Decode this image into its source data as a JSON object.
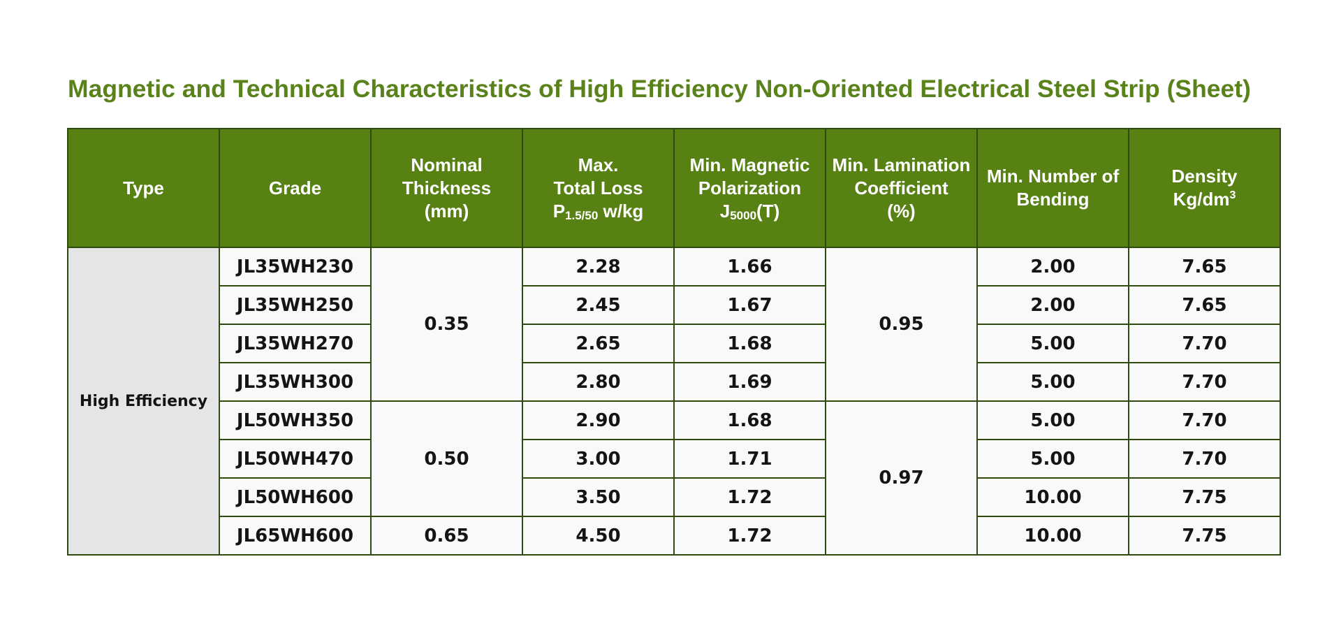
{
  "title": "Magnetic and Technical Characteristics of  High Efficiency Non-Oriented Electrical Steel Strip (Sheet)",
  "header": {
    "type": "Type",
    "grade": "Grade",
    "thickness_l1": "Nominal",
    "thickness_l2": "Thickness",
    "thickness_l3": "(mm)",
    "loss_l1": "Max.",
    "loss_l2": "Total Loss",
    "loss_p": "P",
    "loss_sub": "1.5/50",
    "loss_unit": " w/kg",
    "polar_l1": "Min. Magnetic",
    "polar_l2": "Polarization",
    "polar_j": "J",
    "polar_sub": "5000",
    "polar_unit": "(T)",
    "lam_l1": "Min. Lamination",
    "lam_l2": "Coefficient",
    "lam_l3": "(%)",
    "bend_l1": "Min. Number of",
    "bend_l2": "Bending",
    "density_l1": "Density",
    "density_l2": "Kg/dm",
    "density_sup": "3"
  },
  "type_label": "High Efficiency",
  "thickness_groups": [
    "0.35",
    "0.50",
    "0.65"
  ],
  "lamination_groups": [
    "0.95",
    "0.97"
  ],
  "rows": [
    {
      "grade": "JL35WH230",
      "loss": "2.28",
      "polarization": "1.66",
      "bending": "2.00",
      "density": "7.65"
    },
    {
      "grade": "JL35WH250",
      "loss": "2.45",
      "polarization": "1.67",
      "bending": "2.00",
      "density": "7.65"
    },
    {
      "grade": "JL35WH270",
      "loss": "2.65",
      "polarization": "1.68",
      "bending": "5.00",
      "density": "7.70"
    },
    {
      "grade": "JL35WH300",
      "loss": "2.80",
      "polarization": "1.69",
      "bending": "5.00",
      "density": "7.70"
    },
    {
      "grade": "JL50WH350",
      "loss": "2.90",
      "polarization": "1.68",
      "bending": "5.00",
      "density": "7.70"
    },
    {
      "grade": "JL50WH470",
      "loss": "3.00",
      "polarization": "1.71",
      "bending": "5.00",
      "density": "7.70"
    },
    {
      "grade": "JL50WH600",
      "loss": "3.50",
      "polarization": "1.72",
      "bending": "10.00",
      "density": "7.75"
    },
    {
      "grade": "JL65WH600",
      "loss": "4.50",
      "polarization": "1.72",
      "bending": "10.00",
      "density": "7.75"
    }
  ],
  "colors": {
    "title": "#59821a",
    "header_bg": "#588114",
    "border": "#2f4a0e",
    "type_cell_bg": "#e6e5e5",
    "cell_bg": "#f9f9f9"
  }
}
